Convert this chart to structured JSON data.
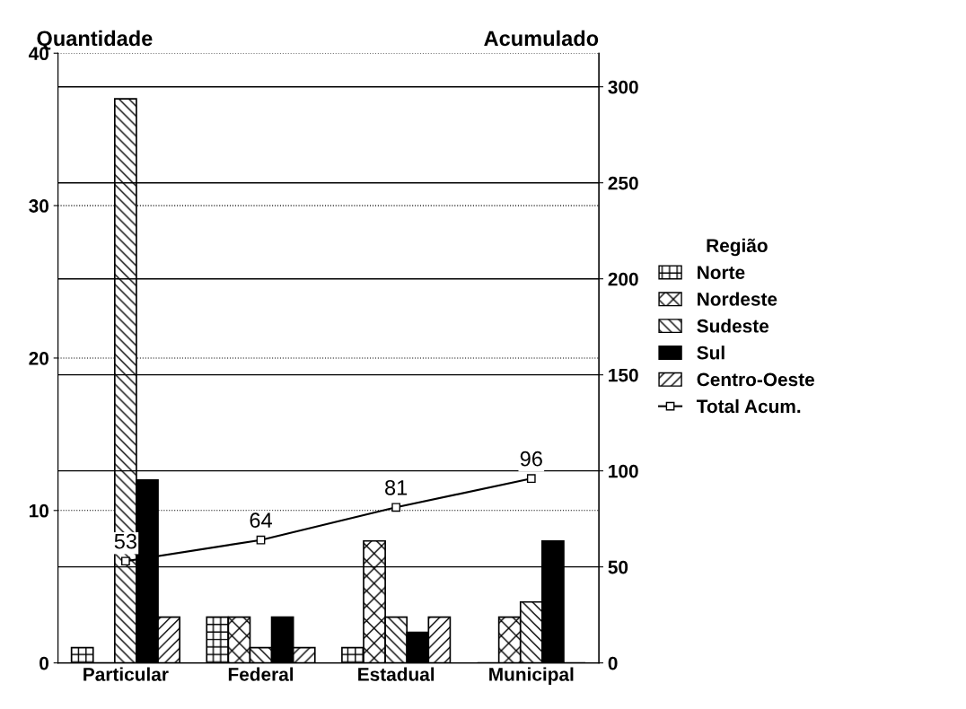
{
  "chart_data": {
    "type": "bar",
    "ylabel": "Quantidade",
    "y2label": "Acumulado",
    "legend_title": "Região",
    "categories": [
      "Particular",
      "Federal",
      "Estadual",
      "Municipal"
    ],
    "series": [
      {
        "name": "Norte",
        "color": "#000000",
        "values": [
          1,
          3,
          1,
          0
        ]
      },
      {
        "name": "Nordeste",
        "color": "#000000",
        "values": [
          0,
          3,
          8,
          3
        ]
      },
      {
        "name": "Sudeste",
        "color": "#000000",
        "values": [
          37,
          1,
          3,
          4
        ]
      },
      {
        "name": "Sul",
        "color": "#000000",
        "values": [
          12,
          3,
          2,
          8
        ]
      },
      {
        "name": "Centro-Oeste",
        "color": "#000000",
        "values": [
          3,
          1,
          3,
          0
        ]
      },
      {
        "name": "Total Acum.",
        "type": "line",
        "axis": "y2",
        "color": "#000000",
        "marker": "square",
        "values": [
          53,
          64,
          81,
          96
        ],
        "value_labels": [
          "53",
          "64",
          "81",
          "96"
        ]
      }
    ],
    "ylim": [
      0,
      40
    ],
    "yticks": [
      0,
      10,
      20,
      30,
      40
    ],
    "y2lim": [
      0,
      317.5
    ],
    "y2ticks": [
      0,
      50,
      100,
      150,
      200,
      250,
      300
    ],
    "grid": true,
    "legend": "right"
  }
}
